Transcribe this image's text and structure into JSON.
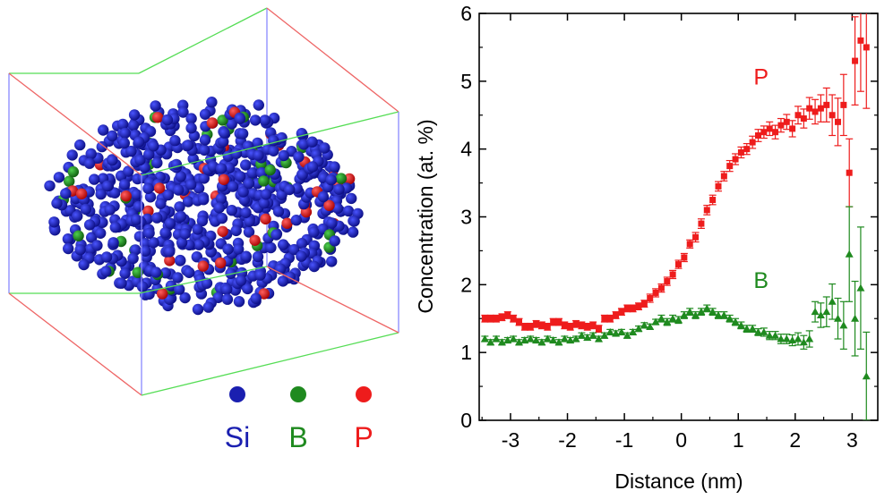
{
  "legend": {
    "si_label": "Si",
    "b_label": "B",
    "p_label": "P",
    "si_color": "#1a1fb0",
    "b_color": "#1f8a1f",
    "p_color": "#ee1c1c"
  },
  "chart_data": {
    "type": "scatter",
    "xlabel": "Distance (nm)",
    "ylabel": "Concentration (at. %)",
    "xlim": [
      -3.55,
      3.45
    ],
    "ylim": [
      0,
      6
    ],
    "xticks": [
      -3,
      -2,
      -1,
      0,
      1,
      2,
      3
    ],
    "yticks": [
      0,
      1,
      2,
      3,
      4,
      5,
      6
    ],
    "xtick_labels": [
      "-3",
      "-2",
      "-1",
      "0",
      "1",
      "2",
      "3"
    ],
    "ytick_labels": [
      "0",
      "1",
      "2",
      "3",
      "4",
      "5",
      "6"
    ],
    "series": [
      {
        "name": "P",
        "color": "#ee1c1c",
        "marker": "square",
        "x": [
          -3.45,
          -3.35,
          -3.25,
          -3.15,
          -3.05,
          -2.95,
          -2.85,
          -2.75,
          -2.65,
          -2.55,
          -2.45,
          -2.35,
          -2.25,
          -2.15,
          -2.05,
          -1.95,
          -1.85,
          -1.75,
          -1.65,
          -1.55,
          -1.45,
          -1.35,
          -1.25,
          -1.15,
          -1.05,
          -0.95,
          -0.85,
          -0.75,
          -0.65,
          -0.55,
          -0.45,
          -0.35,
          -0.25,
          -0.15,
          -0.05,
          0.05,
          0.15,
          0.25,
          0.35,
          0.45,
          0.55,
          0.65,
          0.75,
          0.85,
          0.95,
          1.05,
          1.15,
          1.25,
          1.35,
          1.45,
          1.55,
          1.65,
          1.75,
          1.85,
          1.95,
          2.05,
          2.15,
          2.25,
          2.35,
          2.45,
          2.55,
          2.65,
          2.75,
          2.85,
          2.95,
          3.05,
          3.15,
          3.25
        ],
        "y": [
          1.5,
          1.5,
          1.5,
          1.52,
          1.55,
          1.5,
          1.45,
          1.38,
          1.38,
          1.42,
          1.4,
          1.38,
          1.45,
          1.45,
          1.4,
          1.38,
          1.42,
          1.4,
          1.38,
          1.4,
          1.35,
          1.5,
          1.5,
          1.55,
          1.6,
          1.65,
          1.65,
          1.68,
          1.72,
          1.8,
          1.88,
          1.95,
          2.05,
          2.15,
          2.3,
          2.4,
          2.6,
          2.7,
          2.9,
          3.1,
          3.25,
          3.45,
          3.6,
          3.75,
          3.85,
          3.95,
          4.0,
          4.1,
          4.2,
          4.25,
          4.3,
          4.25,
          4.35,
          4.4,
          4.3,
          4.5,
          4.45,
          4.6,
          4.55,
          4.6,
          4.65,
          4.5,
          4.4,
          4.65,
          3.65,
          5.3,
          5.6,
          5.5
        ],
        "err": [
          0.05,
          0.05,
          0.05,
          0.05,
          0.05,
          0.05,
          0.05,
          0.05,
          0.05,
          0.05,
          0.05,
          0.05,
          0.05,
          0.05,
          0.05,
          0.05,
          0.05,
          0.05,
          0.05,
          0.05,
          0.05,
          0.05,
          0.05,
          0.05,
          0.05,
          0.05,
          0.05,
          0.05,
          0.05,
          0.06,
          0.06,
          0.06,
          0.06,
          0.06,
          0.06,
          0.06,
          0.06,
          0.07,
          0.07,
          0.07,
          0.07,
          0.07,
          0.07,
          0.08,
          0.08,
          0.08,
          0.08,
          0.09,
          0.09,
          0.09,
          0.1,
          0.1,
          0.1,
          0.11,
          0.12,
          0.13,
          0.14,
          0.16,
          0.18,
          0.2,
          0.25,
          0.3,
          0.35,
          0.45,
          0.5,
          0.65,
          0.75,
          0.9
        ]
      },
      {
        "name": "B",
        "color": "#1f8a1f",
        "marker": "triangle",
        "x": [
          -3.45,
          -3.35,
          -3.25,
          -3.15,
          -3.05,
          -2.95,
          -2.85,
          -2.75,
          -2.65,
          -2.55,
          -2.45,
          -2.35,
          -2.25,
          -2.15,
          -2.05,
          -1.95,
          -1.85,
          -1.75,
          -1.65,
          -1.55,
          -1.45,
          -1.35,
          -1.25,
          -1.15,
          -1.05,
          -0.95,
          -0.85,
          -0.75,
          -0.65,
          -0.55,
          -0.45,
          -0.35,
          -0.25,
          -0.15,
          -0.05,
          0.05,
          0.15,
          0.25,
          0.35,
          0.45,
          0.55,
          0.65,
          0.75,
          0.85,
          0.95,
          1.05,
          1.15,
          1.25,
          1.35,
          1.45,
          1.55,
          1.65,
          1.75,
          1.85,
          1.95,
          2.05,
          2.15,
          2.25,
          2.35,
          2.45,
          2.55,
          2.65,
          2.75,
          2.85,
          2.95,
          3.05,
          3.15,
          3.25
        ],
        "y": [
          1.2,
          1.15,
          1.2,
          1.15,
          1.18,
          1.2,
          1.15,
          1.18,
          1.2,
          1.18,
          1.15,
          1.2,
          1.18,
          1.15,
          1.2,
          1.18,
          1.2,
          1.25,
          1.22,
          1.25,
          1.2,
          1.25,
          1.3,
          1.28,
          1.3,
          1.25,
          1.3,
          1.35,
          1.4,
          1.38,
          1.45,
          1.5,
          1.45,
          1.5,
          1.48,
          1.55,
          1.6,
          1.55,
          1.6,
          1.65,
          1.6,
          1.55,
          1.55,
          1.5,
          1.45,
          1.4,
          1.35,
          1.35,
          1.3,
          1.3,
          1.25,
          1.25,
          1.2,
          1.2,
          1.18,
          1.2,
          1.15,
          1.2,
          1.6,
          1.55,
          1.6,
          1.75,
          1.5,
          1.4,
          2.45,
          1.5,
          1.95,
          0.65
        ],
        "err": [
          0.04,
          0.04,
          0.04,
          0.04,
          0.04,
          0.04,
          0.04,
          0.04,
          0.04,
          0.04,
          0.04,
          0.04,
          0.04,
          0.04,
          0.04,
          0.04,
          0.04,
          0.04,
          0.04,
          0.04,
          0.04,
          0.04,
          0.04,
          0.04,
          0.04,
          0.04,
          0.04,
          0.04,
          0.04,
          0.04,
          0.04,
          0.05,
          0.05,
          0.05,
          0.05,
          0.05,
          0.05,
          0.05,
          0.05,
          0.05,
          0.05,
          0.05,
          0.05,
          0.05,
          0.05,
          0.05,
          0.05,
          0.05,
          0.05,
          0.06,
          0.06,
          0.06,
          0.07,
          0.07,
          0.08,
          0.09,
          0.1,
          0.12,
          0.15,
          0.18,
          0.22,
          0.26,
          0.3,
          0.35,
          0.7,
          0.55,
          0.9,
          0.65
        ]
      }
    ],
    "annotations": [
      {
        "text": "P",
        "x": 1.4,
        "y": 4.95,
        "color": "#ee1c1c"
      },
      {
        "text": "B",
        "x": 1.4,
        "y": 1.95,
        "color": "#1f8a1f"
      }
    ]
  }
}
